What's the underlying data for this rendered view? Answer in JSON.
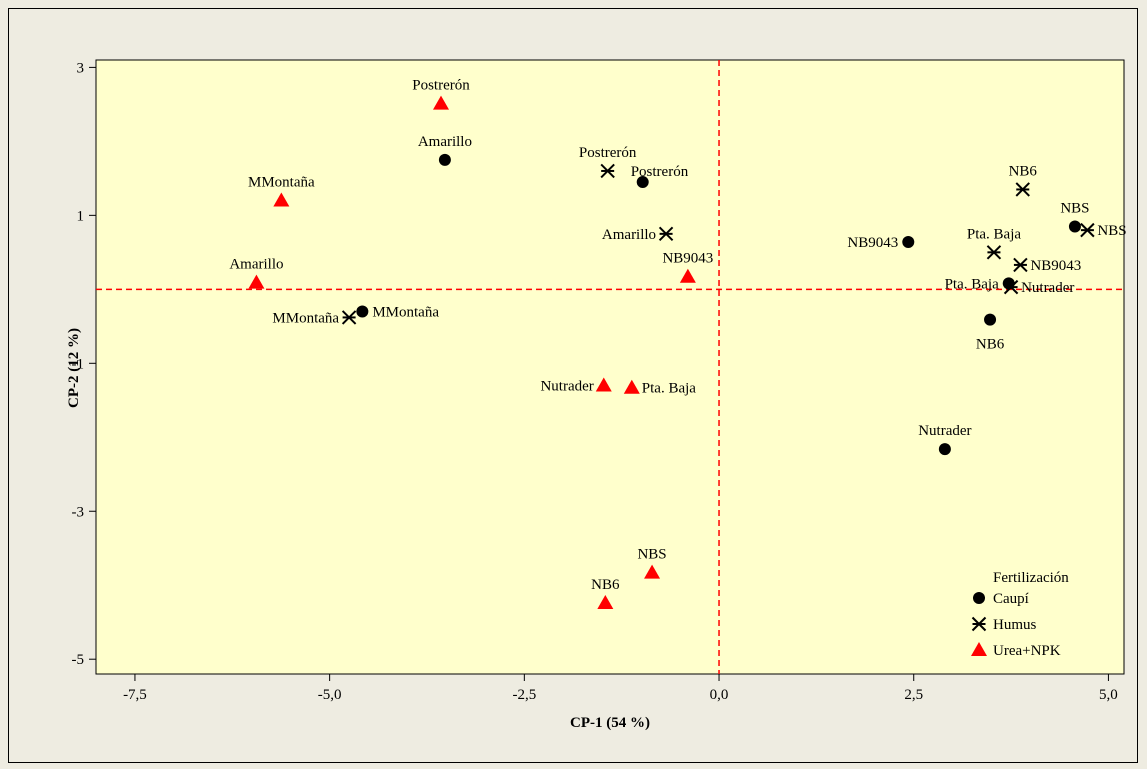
{
  "chart_data": {
    "type": "scatter",
    "xlabel": "CP-1 (54 %)",
    "ylabel": "CP-2  (12 %)",
    "xlim": [
      -8.0,
      5.2
    ],
    "ylim": [
      -5.2,
      3.1
    ],
    "xticks": [
      -7.5,
      -5.0,
      -2.5,
      0.0,
      2.5,
      5.0
    ],
    "xtick_labels": [
      "-7,5",
      "-5,0",
      "-2,5",
      "0,0",
      "2,5",
      "5,0"
    ],
    "yticks": [
      3,
      1,
      -1,
      -3,
      -5
    ],
    "ytick_labels": [
      "3",
      "1",
      "-1",
      "-3",
      "-5"
    ],
    "reference_lines": {
      "x": 0,
      "y": 0,
      "color": "#ff0000",
      "style": "dashed"
    },
    "plot_background": "#ffffcc",
    "legend": {
      "title": "Fertilización",
      "placement": "bottom-right"
    },
    "series": [
      {
        "name": "Caupí",
        "marker": "circle",
        "color": "#000000",
        "points": [
          {
            "label": "Amarillo",
            "x": -3.52,
            "y": 1.75,
            "label_pos": "above"
          },
          {
            "label": "Postrerón",
            "x": -0.98,
            "y": 1.45,
            "label_pos": "above-right"
          },
          {
            "label": "MMontaña",
            "x": -4.58,
            "y": -0.3,
            "label_pos": "right"
          },
          {
            "label": "NB9043",
            "x": 2.43,
            "y": 0.64,
            "label_pos": "left"
          },
          {
            "label": "NBS",
            "x": 4.57,
            "y": 0.85,
            "label_pos": "above"
          },
          {
            "label": "Pta. Baja",
            "x": 3.72,
            "y": 0.08,
            "label_pos": "left"
          },
          {
            "label": "NB6",
            "x": 3.48,
            "y": -0.41,
            "label_pos": "below"
          },
          {
            "label": "Nutrader",
            "x": 2.9,
            "y": -2.16,
            "label_pos": "above"
          }
        ]
      },
      {
        "name": "Humus",
        "marker": "star",
        "color": "#000000",
        "points": [
          {
            "label": "Postrerón",
            "x": -1.43,
            "y": 1.6,
            "label_pos": "above"
          },
          {
            "label": "Amarillo",
            "x": -0.68,
            "y": 0.75,
            "label_pos": "left"
          },
          {
            "label": "MMontaña",
            "x": -4.75,
            "y": -0.38,
            "label_pos": "left"
          },
          {
            "label": "NB6",
            "x": 3.9,
            "y": 1.35,
            "label_pos": "above"
          },
          {
            "label": "NBS",
            "x": 4.73,
            "y": 0.8,
            "label_pos": "right"
          },
          {
            "label": "Pta. Baja",
            "x": 3.53,
            "y": 0.5,
            "label_pos": "above"
          },
          {
            "label": "NB9043",
            "x": 3.87,
            "y": 0.33,
            "label_pos": "right"
          },
          {
            "label": "Nutrader",
            "x": 3.75,
            "y": 0.03,
            "label_pos": "right"
          }
        ]
      },
      {
        "name": "Urea+NPK",
        "marker": "triangle",
        "color": "#ff0000",
        "points": [
          {
            "label": "Postrerón",
            "x": -3.57,
            "y": 2.51,
            "label_pos": "above"
          },
          {
            "label": "MMontaña",
            "x": -5.62,
            "y": 1.2,
            "label_pos": "above"
          },
          {
            "label": "Amarillo",
            "x": -5.94,
            "y": 0.09,
            "label_pos": "above"
          },
          {
            "label": "NB9043",
            "x": -0.4,
            "y": 0.17,
            "label_pos": "above"
          },
          {
            "label": "Nutrader",
            "x": -1.48,
            "y": -1.3,
            "label_pos": "left"
          },
          {
            "label": "Pta. Baja",
            "x": -1.12,
            "y": -1.33,
            "label_pos": "right"
          },
          {
            "label": "NBS",
            "x": -0.86,
            "y": -3.83,
            "label_pos": "above"
          },
          {
            "label": "NB6",
            "x": -1.46,
            "y": -4.24,
            "label_pos": "above"
          }
        ]
      }
    ]
  }
}
